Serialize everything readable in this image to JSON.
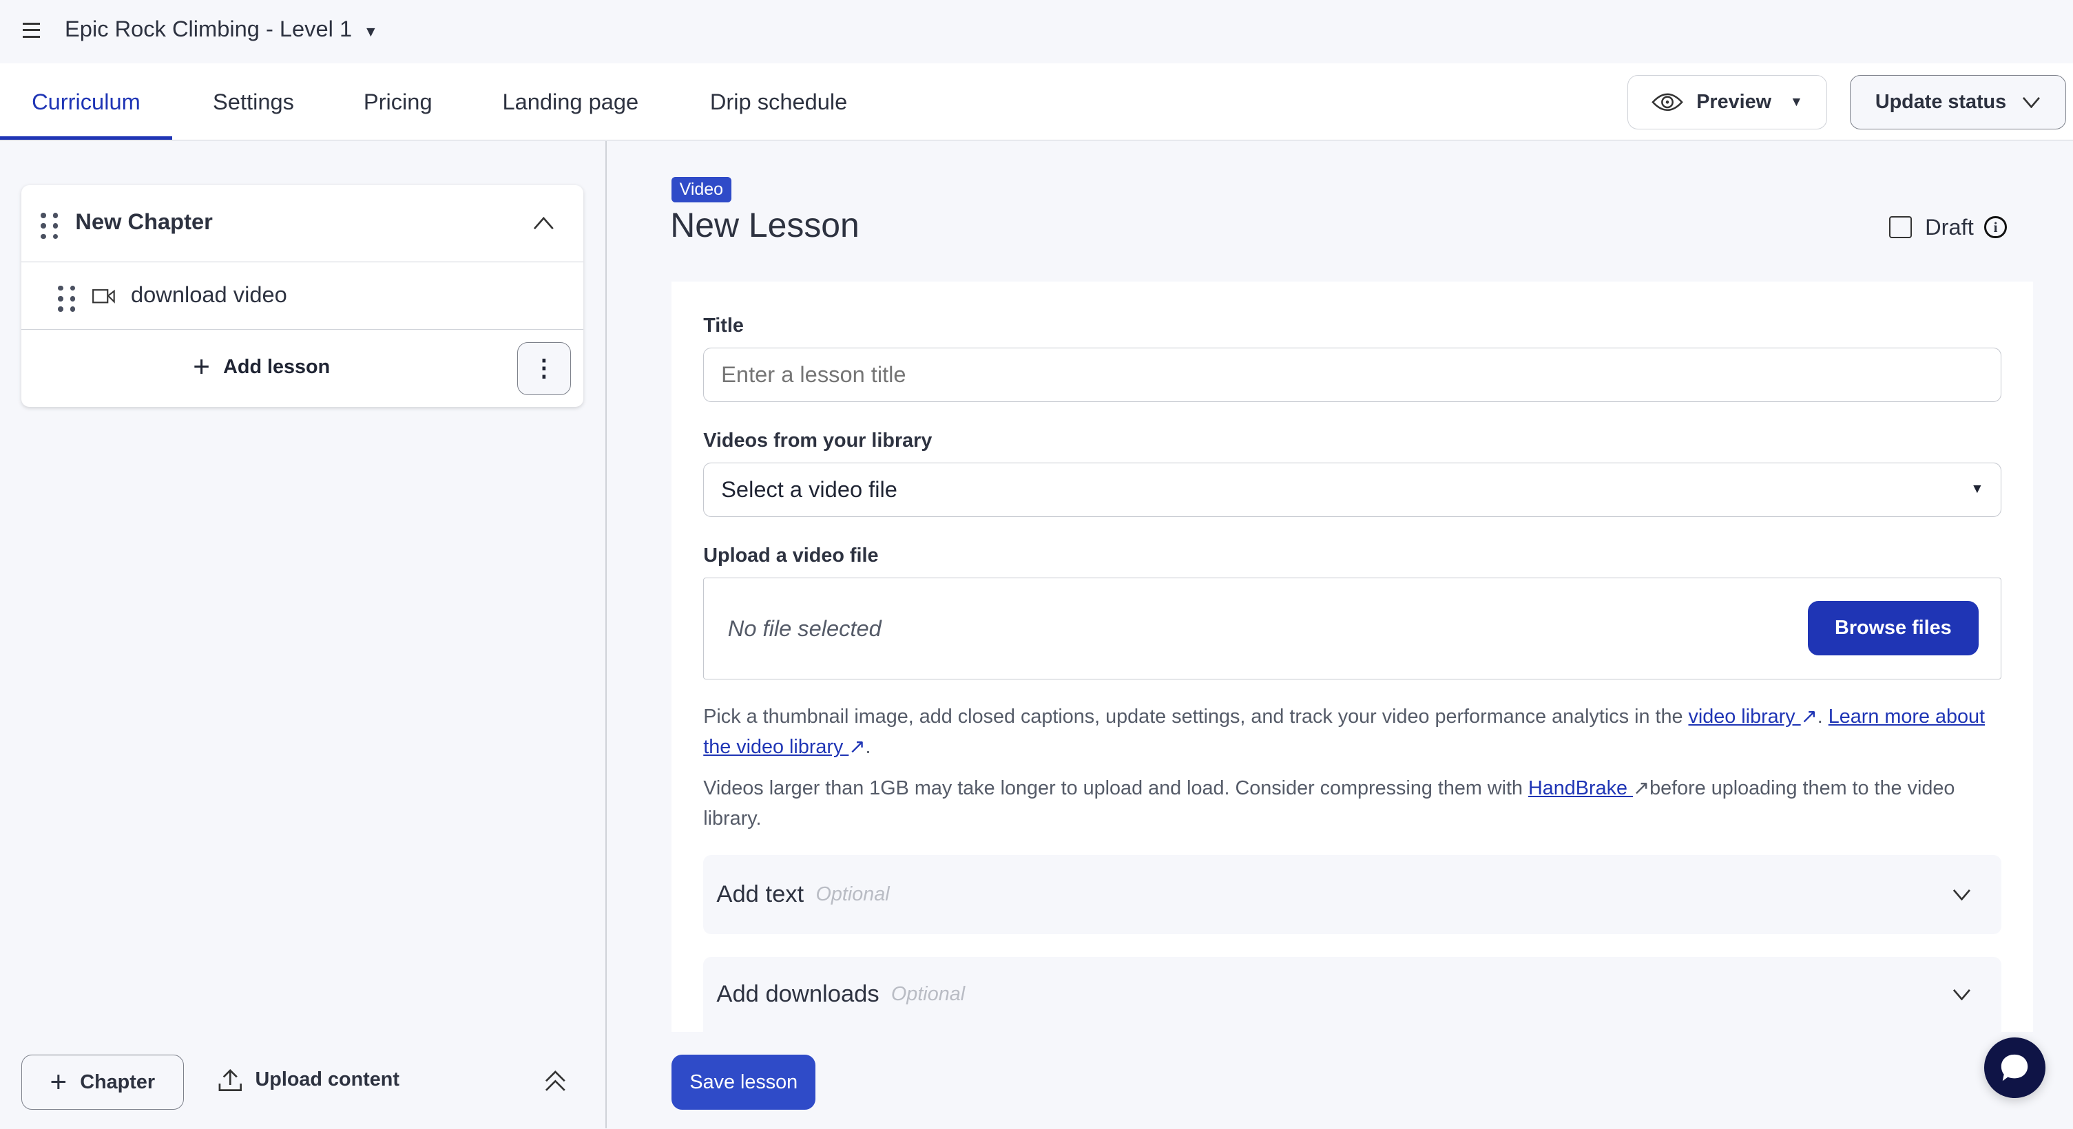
{
  "header": {
    "course_title": "Epic Rock Climbing - Level 1"
  },
  "tabs": [
    {
      "label": "Curriculum",
      "active": true
    },
    {
      "label": "Settings"
    },
    {
      "label": "Pricing"
    },
    {
      "label": "Landing page"
    },
    {
      "label": "Drip schedule"
    }
  ],
  "toolbar": {
    "preview_label": "Preview",
    "update_status_label": "Update status"
  },
  "sidebar": {
    "chapter_title": "New Chapter",
    "lessons": [
      {
        "title": "download video",
        "icon": "video-camera-icon"
      }
    ],
    "add_lesson_label": "Add lesson",
    "add_chapter_label": "Chapter",
    "upload_content_label": "Upload content"
  },
  "lesson": {
    "type_badge": "Video",
    "title": "New Lesson",
    "draft_label": "Draft",
    "draft_checked": false,
    "title_label": "Title",
    "title_placeholder": "Enter a lesson title",
    "library_label": "Videos from your library",
    "library_select_value": "Select a video file",
    "upload_label": "Upload a video file",
    "upload_status": "No file selected",
    "browse_label": "Browse files",
    "help1_prefix": "Pick a thumbnail image, add closed captions, update settings, and track your video performance analytics in the ",
    "help1_link1": "video library ",
    "help1_mid": ". ",
    "help1_link2": "Learn more about the video library ",
    "help1_suffix": ".",
    "help2_prefix": "Videos larger than 1GB may take longer to upload and load. Consider compressing them with ",
    "help2_link": "HandBrake ",
    "help2_suffix": "before uploading them to the video library.",
    "add_text_label": "Add text",
    "add_downloads_label": "Add downloads",
    "optional_label": "Optional",
    "save_label": "Save lesson"
  },
  "colors": {
    "accent": "#1f35b5",
    "button_blue": "#2f4bc8",
    "chat": "#0f1446"
  }
}
